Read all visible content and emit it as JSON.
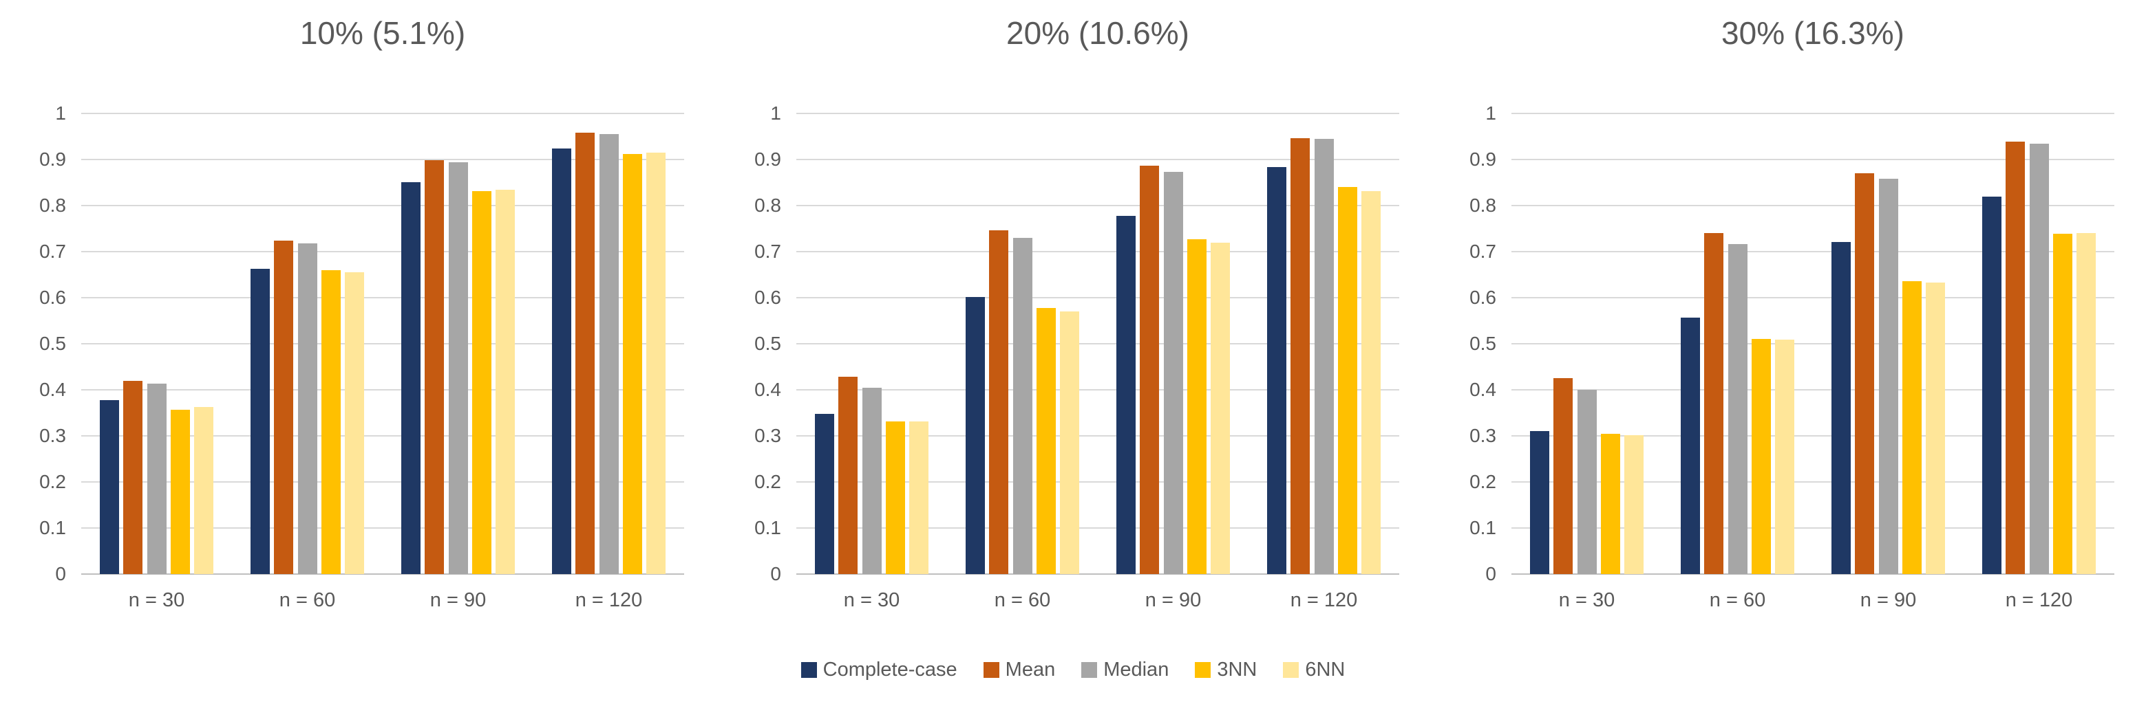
{
  "figure": {
    "background": "#FFFFFF",
    "text_color": "#595959",
    "gridline_color": "#D9D9D9",
    "axis_line_color": "#BFBFBF"
  },
  "legend": {
    "position": "bottom-center",
    "items": [
      {
        "label": "Complete-case",
        "color": "#1F3864"
      },
      {
        "label": "Mean",
        "color": "#C55A11"
      },
      {
        "label": "Median",
        "color": "#A6A6A6"
      },
      {
        "label": "3NN",
        "color": "#FFC000"
      },
      {
        "label": "6NN",
        "color": "#FFE699"
      }
    ]
  },
  "chart_data": [
    {
      "type": "bar",
      "title": "10% (5.1%)",
      "categories": [
        "n = 30",
        "n = 60",
        "n = 90",
        "n = 120"
      ],
      "series": [
        {
          "name": "Complete-case",
          "color": "#1F3864",
          "values": [
            0.378,
            0.662,
            0.851,
            0.924
          ]
        },
        {
          "name": "Mean",
          "color": "#C55A11",
          "values": [
            0.419,
            0.724,
            0.899,
            0.958
          ]
        },
        {
          "name": "Median",
          "color": "#A6A6A6",
          "values": [
            0.413,
            0.718,
            0.894,
            0.955
          ]
        },
        {
          "name": "3NN",
          "color": "#FFC000",
          "values": [
            0.357,
            0.659,
            0.832,
            0.912
          ]
        },
        {
          "name": "6NN",
          "color": "#FFE699",
          "values": [
            0.362,
            0.655,
            0.835,
            0.915
          ]
        }
      ],
      "xlabel": "",
      "ylabel": "",
      "ylim": [
        0,
        1
      ],
      "ytick_step": 0.1,
      "grid": "horizontal",
      "legend_position": "shared-bottom"
    },
    {
      "type": "bar",
      "title": "20% (10.6%)",
      "categories": [
        "n = 30",
        "n = 60",
        "n = 90",
        "n = 120"
      ],
      "series": [
        {
          "name": "Complete-case",
          "color": "#1F3864",
          "values": [
            0.348,
            0.601,
            0.778,
            0.884
          ]
        },
        {
          "name": "Mean",
          "color": "#C55A11",
          "values": [
            0.429,
            0.746,
            0.886,
            0.947
          ]
        },
        {
          "name": "Median",
          "color": "#A6A6A6",
          "values": [
            0.405,
            0.73,
            0.873,
            0.945
          ]
        },
        {
          "name": "3NN",
          "color": "#FFC000",
          "values": [
            0.331,
            0.578,
            0.727,
            0.84
          ]
        },
        {
          "name": "6NN",
          "color": "#FFE699",
          "values": [
            0.331,
            0.57,
            0.72,
            0.832
          ]
        }
      ],
      "xlabel": "",
      "ylabel": "",
      "ylim": [
        0,
        1
      ],
      "ytick_step": 0.1,
      "grid": "horizontal",
      "legend_position": "shared-bottom"
    },
    {
      "type": "bar",
      "title": "30% (16.3%)",
      "categories": [
        "n = 30",
        "n = 60",
        "n = 90",
        "n = 120"
      ],
      "series": [
        {
          "name": "Complete-case",
          "color": "#1F3864",
          "values": [
            0.311,
            0.556,
            0.721,
            0.82
          ]
        },
        {
          "name": "Mean",
          "color": "#C55A11",
          "values": [
            0.425,
            0.74,
            0.87,
            0.939
          ]
        },
        {
          "name": "Median",
          "color": "#A6A6A6",
          "values": [
            0.4,
            0.717,
            0.858,
            0.935
          ]
        },
        {
          "name": "3NN",
          "color": "#FFC000",
          "values": [
            0.304,
            0.511,
            0.636,
            0.739
          ]
        },
        {
          "name": "6NN",
          "color": "#FFE699",
          "values": [
            0.302,
            0.509,
            0.633,
            0.74
          ]
        }
      ],
      "xlabel": "",
      "ylabel": "",
      "ylim": [
        0,
        1
      ],
      "ytick_step": 0.1,
      "grid": "horizontal",
      "legend_position": "shared-bottom"
    }
  ]
}
